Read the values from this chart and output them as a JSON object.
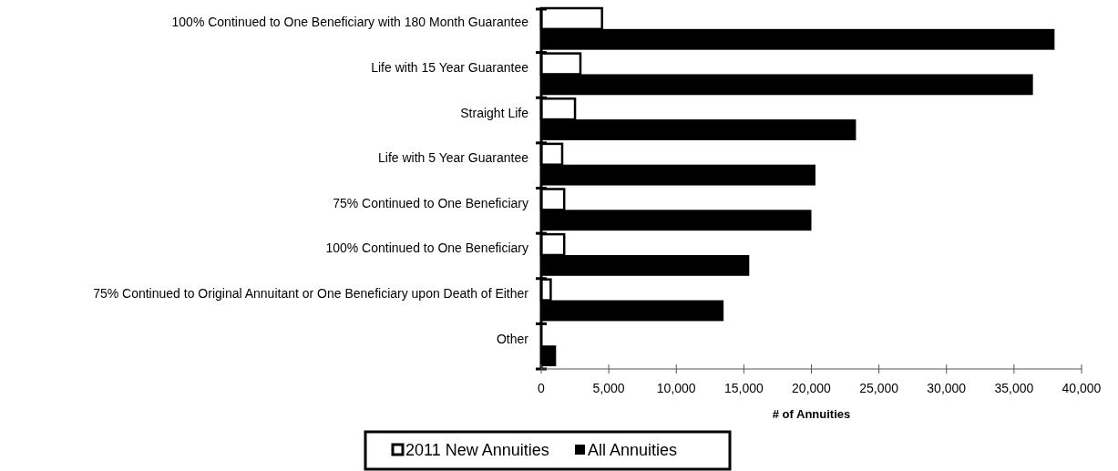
{
  "chart_data": {
    "type": "bar",
    "orientation": "horizontal",
    "xlabel": "# of Annuities",
    "categories": [
      "100% Continued to One Beneficiary with 180 Month Guarantee",
      "Life with 15 Year Guarantee",
      "Straight Life",
      "Life with 5 Year Guarantee",
      "75% Continued to One Beneficiary",
      "100% Continued to One Beneficiary",
      "75% Continued to Original Annuitant or One Beneficiary upon Death of Either",
      "Other"
    ],
    "series": [
      {
        "name": "2011 New Annuities",
        "color": "#ffffff",
        "values": [
          4500,
          2900,
          2500,
          1550,
          1700,
          1700,
          700,
          null
        ]
      },
      {
        "name": "All Annuities",
        "color": "#000000",
        "values": [
          38000,
          36400,
          23300,
          20300,
          20000,
          15400,
          13500,
          1100
        ]
      }
    ],
    "xlim": [
      0,
      40000
    ],
    "xticks": [
      0,
      {
        "value": 5000,
        "label": "5,000"
      },
      {
        "value": 10000,
        "label": "10,000"
      },
      {
        "value": 15000,
        "label": "15,000"
      },
      {
        "value": 20000,
        "label": "20,000"
      },
      {
        "value": 25000,
        "label": "25,000"
      },
      {
        "value": 30000,
        "label": "30,000"
      },
      {
        "value": 35000,
        "label": "35,000"
      },
      {
        "value": 40000,
        "label": "40,000"
      }
    ],
    "legend": "bottom",
    "grid": false
  }
}
